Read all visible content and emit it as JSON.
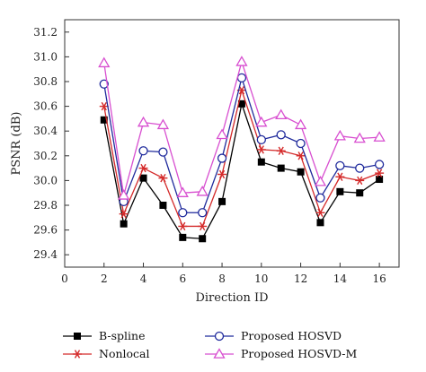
{
  "chart_data": {
    "type": "line",
    "title": "",
    "xlabel": "Direction ID",
    "ylabel": "PSNR (dB)",
    "xlim": [
      0,
      17
    ],
    "ylim": [
      29.3,
      31.3
    ],
    "xticks": [
      0,
      2,
      4,
      6,
      8,
      10,
      12,
      14,
      16
    ],
    "yticks": [
      29.4,
      29.6,
      29.8,
      30.0,
      30.2,
      30.4,
      30.6,
      30.8,
      31.0,
      31.2
    ],
    "yticklabels": [
      "29.4",
      "29.6",
      "29.8",
      "30.0",
      "30.2",
      "30.4",
      "30.6",
      "30.8",
      "31.0",
      "31.2"
    ],
    "grid": false,
    "legend_position": "bottom",
    "x": [
      2,
      3,
      4,
      5,
      6,
      7,
      8,
      9,
      10,
      11,
      12,
      13,
      14,
      15,
      16
    ],
    "series": [
      {
        "name": "B-spline",
        "marker": "filled-square",
        "color": "#000000",
        "values": [
          30.49,
          29.65,
          30.02,
          29.8,
          29.54,
          29.53,
          29.83,
          30.62,
          30.15,
          30.1,
          30.07,
          29.66,
          29.91,
          29.9,
          30.01
        ]
      },
      {
        "name": "Nonlocal",
        "marker": "asterisk",
        "color": "#d42a2a",
        "values": [
          30.6,
          29.73,
          30.1,
          30.02,
          29.63,
          29.63,
          30.05,
          30.73,
          30.25,
          30.24,
          30.2,
          29.74,
          30.03,
          30.0,
          30.06
        ]
      },
      {
        "name": "Proposed HOSVD",
        "marker": "open-circle",
        "color": "#1f2a9c",
        "values": [
          30.78,
          29.83,
          30.24,
          30.23,
          29.74,
          29.74,
          30.18,
          30.83,
          30.33,
          30.37,
          30.3,
          29.86,
          30.12,
          30.1,
          30.13
        ]
      },
      {
        "name": "Proposed HOSVD-M",
        "marker": "open-triangle",
        "color": "#d84fd0",
        "values": [
          30.95,
          29.88,
          30.47,
          30.45,
          29.9,
          29.91,
          30.37,
          30.96,
          30.47,
          30.53,
          30.45,
          29.99,
          30.36,
          30.34,
          30.35
        ]
      }
    ]
  }
}
